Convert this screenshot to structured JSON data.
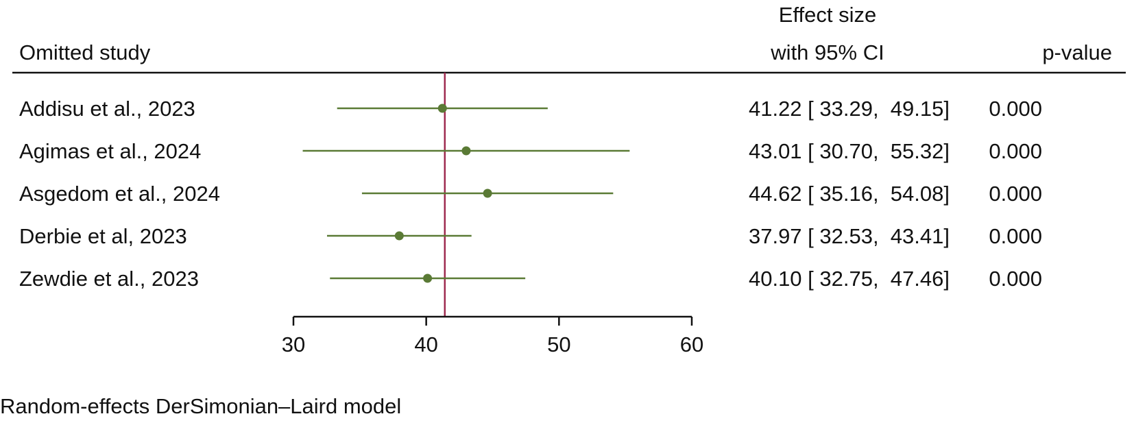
{
  "chart_data": {
    "type": "scatter",
    "header": {
      "study_col": "Omitted study",
      "effect_col_line1": "Effect size",
      "effect_col_line2": "with 95% CI",
      "p_col": "p-value"
    },
    "studies": [
      {
        "label": "Addisu et al., 2023",
        "estimate": 41.22,
        "ci_low": 33.29,
        "ci_high": 49.15,
        "ci_text": "41.22 [ 33.29,  49.15]",
        "p_text": "0.000"
      },
      {
        "label": "Agimas et al., 2024",
        "estimate": 43.01,
        "ci_low": 30.7,
        "ci_high": 55.32,
        "ci_text": "43.01 [ 30.70,  55.32]",
        "p_text": "0.000"
      },
      {
        "label": "Asgedom et al., 2024",
        "estimate": 44.62,
        "ci_low": 35.16,
        "ci_high": 54.08,
        "ci_text": "44.62 [ 35.16,  54.08]",
        "p_text": "0.000"
      },
      {
        "label": "Derbie et al, 2023",
        "estimate": 37.97,
        "ci_low": 32.53,
        "ci_high": 43.41,
        "ci_text": "37.97 [ 32.53,  43.41]",
        "p_text": "0.000"
      },
      {
        "label": "Zewdie et al., 2023",
        "estimate": 40.1,
        "ci_low": 32.75,
        "ci_high": 47.46,
        "ci_text": "40.10 [ 32.75,  47.46]",
        "p_text": "0.000"
      }
    ],
    "reference_value": 41.4,
    "xlim": [
      30,
      60
    ],
    "xticks": [
      30,
      40,
      50,
      60
    ],
    "footnote": "Random-effects DerSimonian–Laird model",
    "colors": {
      "marker": "#5a7a35",
      "ci_line": "#5a7a35",
      "reference_line": "#9e2a4f",
      "text": "#111111",
      "rule": "#111111"
    }
  }
}
